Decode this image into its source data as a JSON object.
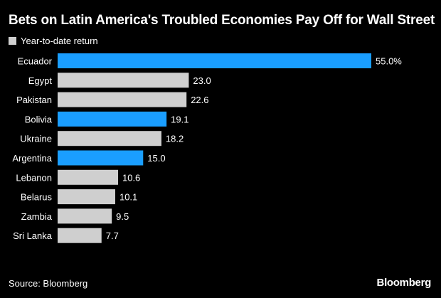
{
  "chart_data": {
    "type": "bar",
    "orientation": "horizontal",
    "title": "Bets on Latin America's Troubled Economies Pay Off for Wall Street",
    "legend": {
      "label": "Year-to-date return",
      "placement": "top-left"
    },
    "categories": [
      "Ecuador",
      "Egypt",
      "Pakistan",
      "Bolivia",
      "Ukraine",
      "Argentina",
      "Lebanon",
      "Belarus",
      "Zambia",
      "Sri Lanka"
    ],
    "values": [
      55.0,
      23.0,
      22.6,
      19.1,
      18.2,
      15.0,
      10.6,
      10.1,
      9.5,
      7.7
    ],
    "value_labels": [
      "55.0%",
      "23.0",
      "22.6",
      "19.1",
      "18.2",
      "15.0",
      "10.6",
      "10.1",
      "9.5",
      "7.7"
    ],
    "highlighted": [
      true,
      false,
      false,
      true,
      false,
      true,
      false,
      false,
      false,
      false
    ],
    "xlim": [
      0,
      55
    ],
    "grid": false,
    "xlabel": "",
    "ylabel": ""
  },
  "colors": {
    "background": "#000000",
    "highlight": "#1a9eff",
    "default": "#cfcfcf",
    "legend_swatch": "#cfcfcf",
    "text": "#ffffff"
  },
  "footer": {
    "source": "Source: Bloomberg",
    "brand": "Bloomberg"
  }
}
